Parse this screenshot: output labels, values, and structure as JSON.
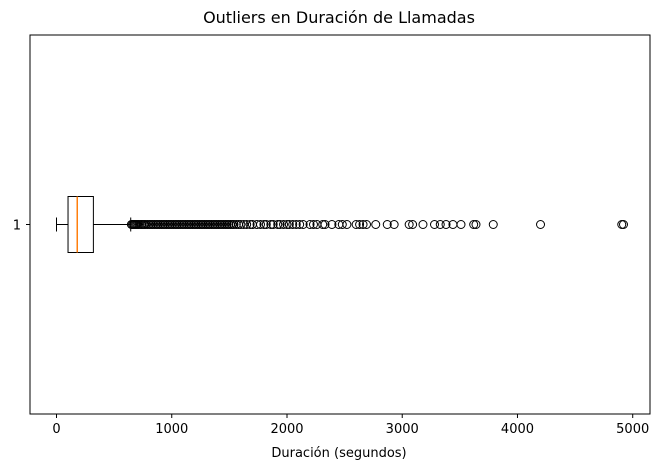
{
  "chart_data": {
    "type": "boxplot",
    "orientation": "horizontal",
    "title": "Outliers en Duración de Llamadas",
    "xlabel": "Duración (segundos)",
    "ylabel": "",
    "xlim": [
      -230,
      5150
    ],
    "xticks": [
      0,
      1000,
      2000,
      3000,
      4000,
      5000
    ],
    "yticks": [
      "1"
    ],
    "grid": false,
    "colors": {
      "box": "#000000",
      "median": "#ff7f0e",
      "outlier": "#000000"
    },
    "box": {
      "category": "1",
      "whisker_low": 0,
      "q1": 100,
      "median": 180,
      "q3": 320,
      "whisker_high": 644
    },
    "outliers": [
      650,
      660,
      670,
      680,
      690,
      700,
      712,
      725,
      738,
      750,
      762,
      775,
      790,
      805,
      820,
      835,
      850,
      865,
      880,
      895,
      910,
      925,
      940,
      955,
      970,
      985,
      1000,
      1015,
      1030,
      1045,
      1060,
      1075,
      1090,
      1105,
      1120,
      1135,
      1150,
      1165,
      1180,
      1195,
      1210,
      1225,
      1240,
      1255,
      1270,
      1285,
      1300,
      1315,
      1330,
      1345,
      1360,
      1375,
      1390,
      1405,
      1420,
      1435,
      1450,
      1465,
      1480,
      1495,
      1510,
      1525,
      1540,
      1560,
      1580,
      1600,
      1625,
      1650,
      1680,
      1700,
      1740,
      1770,
      1800,
      1820,
      1860,
      1880,
      1920,
      1940,
      1970,
      2000,
      2020,
      2050,
      2080,
      2110,
      2140,
      2200,
      2230,
      2260,
      2310,
      2330,
      2390,
      2450,
      2480,
      2520,
      2600,
      2630,
      2660,
      2690,
      2770,
      2870,
      2930,
      3060,
      3090,
      3180,
      3280,
      3330,
      3380,
      3440,
      3510,
      3620,
      3640,
      3790,
      4200,
      4905,
      4920
    ]
  }
}
